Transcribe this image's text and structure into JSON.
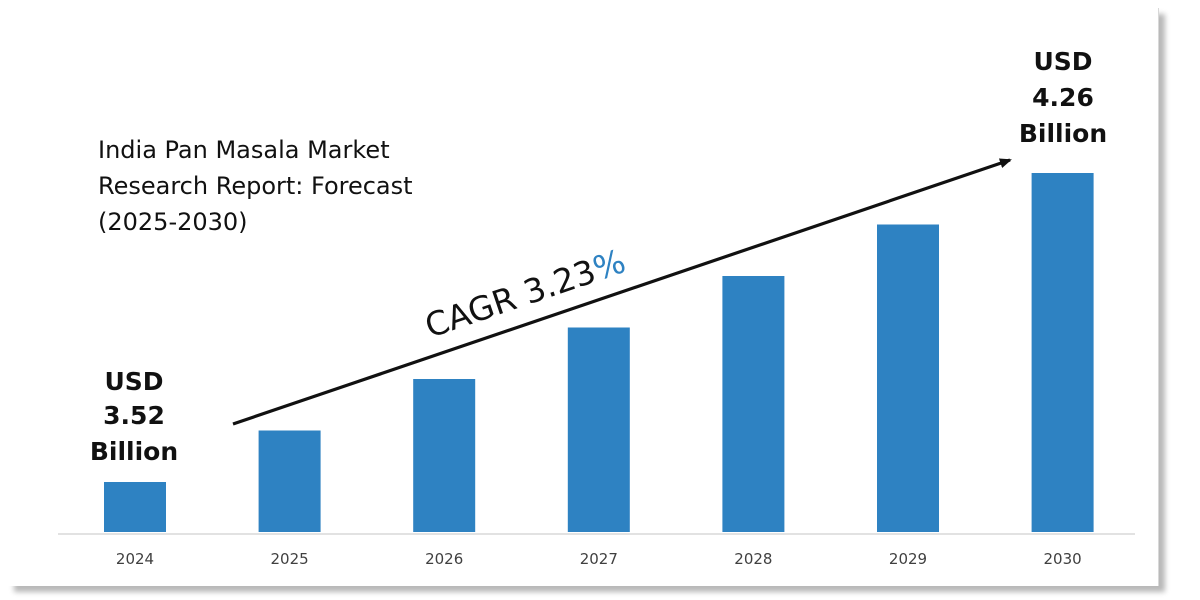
{
  "chart_data": {
    "type": "bar",
    "title_lines": [
      "India Pan Masala Market",
      "Research Report: Forecast",
      "(2025-2030)"
    ],
    "categories": [
      "2024",
      "2025",
      "2026",
      "2027",
      "2028",
      "2029",
      "2030"
    ],
    "bar_levels": [
      1,
      2,
      3,
      4,
      5,
      6,
      7
    ],
    "bar_levels_note_scale": "relative heights read from image; actual values only printed for endpoints",
    "start_label_lines": [
      "USD",
      "3.52",
      "Billion"
    ],
    "end_label_lines": [
      "USD",
      "4.26",
      "Billion"
    ],
    "cagr_prefix": "CAGR 3.23",
    "cagr_suffix": "%",
    "xlabel": "",
    "ylabel": "",
    "grid": false,
    "colors": {
      "bar": "#2e82c2",
      "percent": "#2e82c2",
      "text": "#111111",
      "axis": "#d9d9d9"
    }
  }
}
